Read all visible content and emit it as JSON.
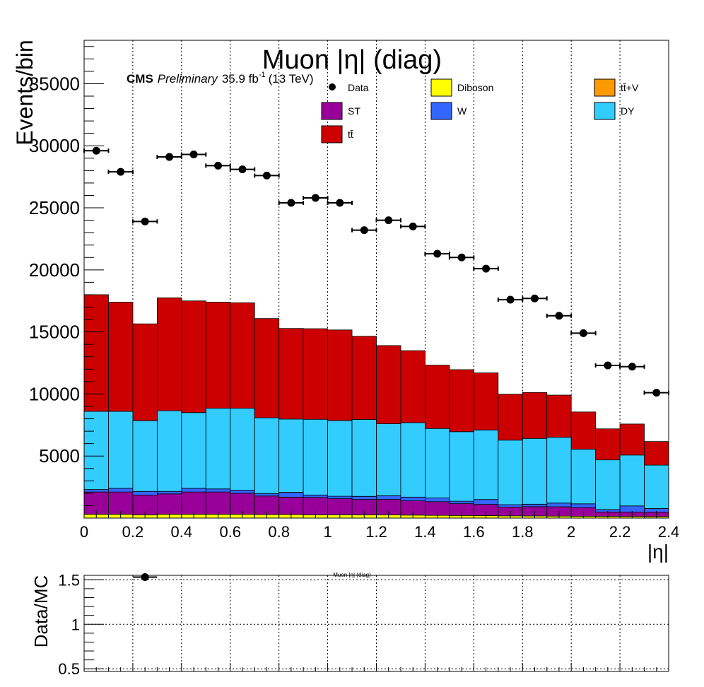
{
  "chart_data": [
    {
      "type": "bar",
      "stacked": true,
      "title": "Muon |η| (diag)",
      "label_cms": "CMS",
      "label_prelim": "Preliminary",
      "label_lumi": "35.9 fb",
      "label_lumi_exp": "-1",
      "label_energy": "(13 TeV)",
      "xlabel": "|η|",
      "ylabel": "Events/bin",
      "xlim": [
        0,
        2.4
      ],
      "ylim": [
        0,
        38500
      ],
      "xticks": [
        "0",
        "0.2",
        "0.4",
        "0.6",
        "0.8",
        "1",
        "1.2",
        "1.4",
        "1.6",
        "1.8",
        "2",
        "2.2",
        "2.4"
      ],
      "yticks": [
        "5000",
        "10000",
        "15000",
        "20000",
        "25000",
        "30000",
        "35000"
      ],
      "grid_x": true,
      "grid_y": false,
      "bin_edges": [
        0,
        0.1,
        0.2,
        0.3,
        0.4,
        0.5,
        0.6,
        0.7,
        0.8,
        0.9,
        1.0,
        1.1,
        1.2,
        1.3,
        1.4,
        1.5,
        1.6,
        1.7,
        1.8,
        1.9,
        2.0,
        2.1,
        2.2,
        2.3,
        2.4
      ],
      "series": [
        {
          "name": "Diboson",
          "color": "#ffff00",
          "values": [
            300,
            300,
            250,
            300,
            300,
            300,
            300,
            280,
            280,
            260,
            260,
            250,
            250,
            240,
            220,
            210,
            200,
            180,
            170,
            160,
            150,
            140,
            130,
            120
          ]
        },
        {
          "name": "ST",
          "color": "#990099",
          "values": [
            1800,
            1800,
            1600,
            1650,
            1800,
            1800,
            1700,
            1500,
            1400,
            1400,
            1300,
            1250,
            1250,
            1150,
            1100,
            950,
            900,
            700,
            750,
            750,
            700,
            350,
            350,
            350
          ]
        },
        {
          "name": "W",
          "color": "#3366ff",
          "values": [
            200,
            300,
            300,
            200,
            300,
            250,
            250,
            200,
            400,
            200,
            200,
            250,
            300,
            300,
            300,
            200,
            400,
            200,
            200,
            300,
            300,
            200,
            500,
            300
          ]
        },
        {
          "name": "DY",
          "color": "#33ccff",
          "values": [
            6300,
            6200,
            5700,
            6500,
            6100,
            6500,
            6600,
            6100,
            5900,
            6100,
            6100,
            6200,
            5800,
            6000,
            5600,
            5600,
            5600,
            5200,
            5300,
            5300,
            4400,
            4000,
            4100,
            3500
          ]
        },
        {
          "name": "tt̄",
          "color": "#cc0000",
          "values": [
            9400,
            8800,
            7800,
            9100,
            9000,
            8550,
            8500,
            8000,
            7300,
            7300,
            7300,
            6700,
            6300,
            5800,
            5100,
            5000,
            4600,
            3700,
            3700,
            3400,
            3000,
            2500,
            2500,
            1900
          ]
        },
        {
          "name": "tt̄+V",
          "color": "#ff9900",
          "values": [
            0,
            0,
            0,
            0,
            0,
            0,
            0,
            0,
            0,
            0,
            0,
            0,
            0,
            0,
            0,
            0,
            0,
            0,
            0,
            0,
            0,
            0,
            0,
            0
          ]
        }
      ],
      "data": {
        "name": "Data",
        "values": [
          29600,
          27900,
          23900,
          29100,
          29300,
          28400,
          28100,
          27600,
          25400,
          25800,
          25400,
          23200,
          24000,
          23500,
          21300,
          21000,
          20100,
          17600,
          17700,
          16300,
          14900,
          12300,
          12200,
          10100
        ]
      },
      "legend": {
        "placement": "top-right",
        "entries": [
          {
            "label": "Data",
            "kind": "marker",
            "color": "#000000"
          },
          {
            "label": "Diboson",
            "kind": "box",
            "color": "#ffff00"
          },
          {
            "label": "tt̄+V",
            "kind": "box",
            "color": "#ff9900"
          },
          {
            "label": "ST",
            "kind": "box",
            "color": "#990099"
          },
          {
            "label": "W",
            "kind": "box",
            "color": "#3366ff"
          },
          {
            "label": "DY",
            "kind": "box",
            "color": "#33ccff"
          },
          {
            "label": "tt̄",
            "kind": "box",
            "color": "#cc0000"
          }
        ]
      }
    },
    {
      "type": "scatter",
      "title": "Muon |η| (diag)",
      "ylabel": "Data/MC",
      "ylim": [
        0.47,
        1.55
      ],
      "yticks": [
        "0.5",
        "1",
        "1.5"
      ],
      "grid_x": true,
      "grid_y": true,
      "points": [
        {
          "x": 0.25,
          "y": 1.53
        }
      ]
    }
  ]
}
